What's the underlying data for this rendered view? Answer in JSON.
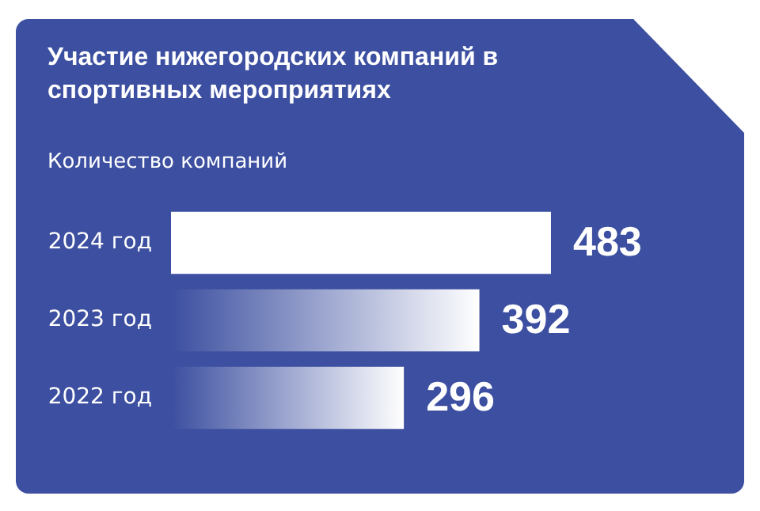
{
  "chart_data": {
    "type": "bar",
    "orientation": "horizontal",
    "title": "Участие нижегородских компаний в спортивных мероприятиях",
    "xlabel": "Количество компаний",
    "categories": [
      "2024 год",
      "2023 год",
      "2022 год"
    ],
    "values": [
      483,
      392,
      296
    ],
    "colors": [
      "#ffffff",
      "#ffffff",
      "#ffffff"
    ],
    "data_labels": true
  }
}
